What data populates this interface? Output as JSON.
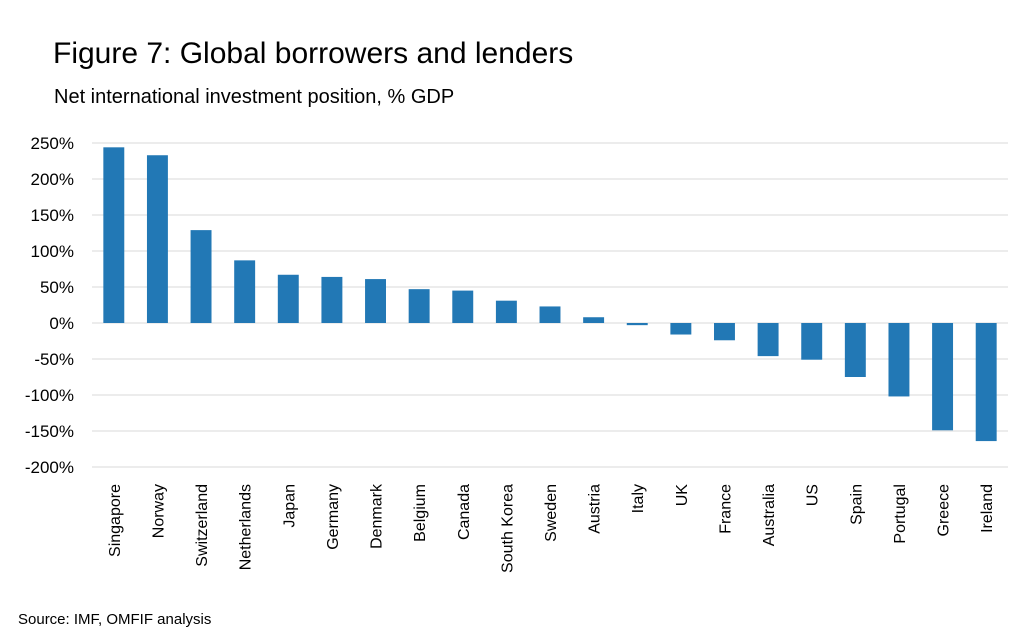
{
  "chart_data": {
    "type": "bar",
    "title": "Figure 7: Global borrowers and lenders",
    "subtitle": "Net international investment position, % GDP",
    "source": "Source: IMF, OMFIF analysis",
    "categories": [
      "Singapore",
      "Norway",
      "Switzerland",
      "Netherlands",
      "Japan",
      "Germany",
      "Denmark",
      "Belgium",
      "Canada",
      "South Korea",
      "Sweden",
      "Austria",
      "Italy",
      "UK",
      "France",
      "Australia",
      "US",
      "Spain",
      "Portugal",
      "Greece",
      "Ireland"
    ],
    "values": [
      244,
      233,
      129,
      87,
      67,
      64,
      61,
      47,
      45,
      31,
      23,
      8,
      -3,
      -16,
      -24,
      -46,
      -51,
      -75,
      -102,
      -149,
      -164
    ],
    "ylim": [
      -200,
      250
    ],
    "yticks": [
      250,
      200,
      150,
      100,
      50,
      0,
      -50,
      -100,
      -150,
      -200
    ],
    "ytick_labels": [
      "250%",
      "200%",
      "150%",
      "100%",
      "50%",
      "0%",
      "-50%",
      "-100%",
      "-150%",
      "-200%"
    ],
    "grid": true,
    "legend": "none",
    "bar_color": "#2278b5",
    "grid_color": "#d9d9d9"
  }
}
